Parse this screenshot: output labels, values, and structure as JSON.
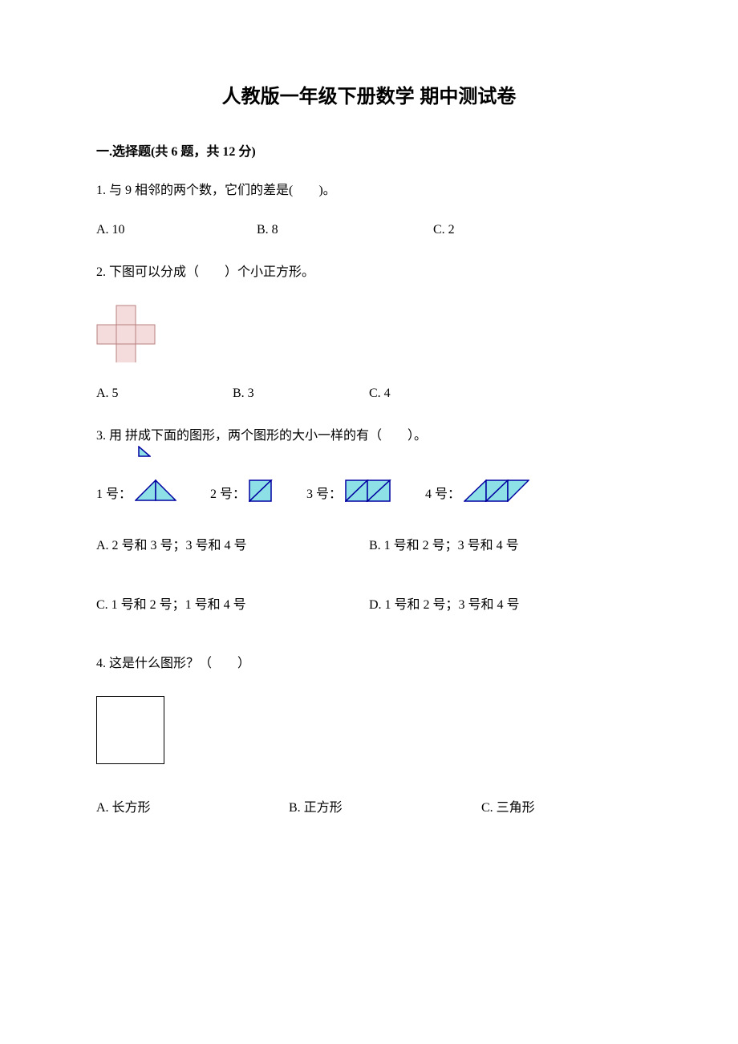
{
  "title": "人教版一年级下册数学 期中测试卷",
  "section1": {
    "header": "一.选择题(共 6 题，共 12 分)"
  },
  "q1": {
    "text": "1. 与 9 相邻的两个数，它们的差是(　　)。",
    "optA": "A. 10",
    "optB": "B. 8",
    "optC": "C. 2"
  },
  "q2": {
    "text": "2. 下图可以分成（　　）个小正方形。",
    "optA": "A. 5",
    "optB": "B. 3",
    "optC": "C. 4",
    "plus_shape": {
      "cell_size": 24,
      "fill": "#f5dcdc",
      "stroke": "#b97f7f",
      "stroke_width": 1
    }
  },
  "q3": {
    "text_before": "3. 用",
    "text_after": "拼成下面的图形，两个图形的大小一样的有（　　）。",
    "labels": {
      "s1": "1 号：",
      "s2": "2 号：",
      "s3": "3 号：",
      "s4": "4 号："
    },
    "shape_style": {
      "fill": "#8de0e6",
      "stroke": "#0000a0",
      "stroke_width": 1.5
    },
    "optA": "A. 2 号和 3 号；3 号和 4 号",
    "optB": "B. 1 号和 2 号；3 号和 4 号",
    "optC": "C. 1 号和 2 号；1 号和 4 号",
    "optD": "D. 1 号和 2 号；3 号和 4 号"
  },
  "q4": {
    "text": "4. 这是什么图形？（　　）",
    "optA": "A. 长方形",
    "optB": "B. 正方形",
    "optC": "C. 三角形"
  }
}
